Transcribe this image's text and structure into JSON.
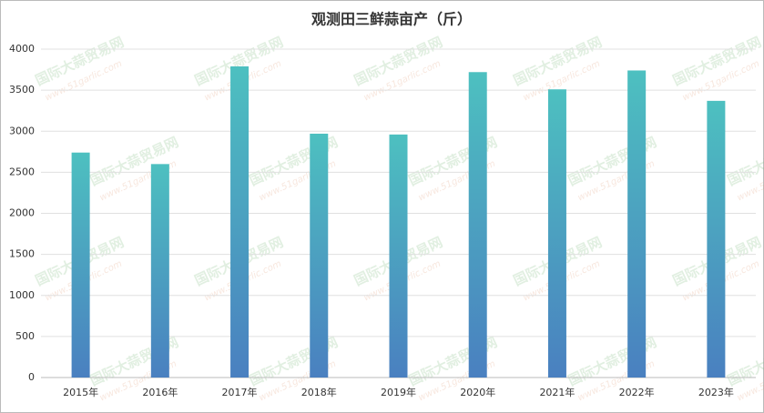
{
  "chart_data": {
    "type": "bar",
    "title": "观测田三鲜蒜亩产（斤）",
    "categories": [
      "2015年",
      "2016年",
      "2017年",
      "2018年",
      "2019年",
      "2020年",
      "2021年",
      "2022年",
      "2023年"
    ],
    "values": [
      2740,
      2600,
      3790,
      2970,
      2960,
      3720,
      3510,
      3740,
      3370
    ],
    "color": "#4dc0c0",
    "color_bottom": "#4a80c0",
    "ylim": [
      0,
      4000
    ],
    "yticks": [
      0,
      500,
      1000,
      1500,
      2000,
      2500,
      3000,
      3500,
      4000
    ],
    "grid": true,
    "watermark": {
      "name": "国际大蒜贸易网",
      "url": "www.51garlic.com"
    }
  }
}
